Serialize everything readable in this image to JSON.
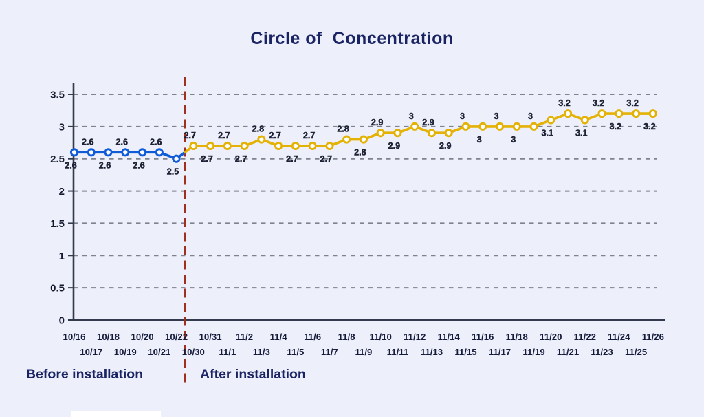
{
  "title": "Circle of  Concentration",
  "annotations": {
    "before": "Before installation",
    "after": "After installation"
  },
  "colors": {
    "background": "#EDF0FA",
    "title_text": "#1A2464",
    "before_series": "#0F5BD8",
    "after_series": "#E3B204",
    "divider": "#9F2F1F",
    "grid": "#7F838D",
    "axis": "#333A4D",
    "data_label": "#1E2235",
    "date_label": "#151B3B",
    "y_label": "#15192E",
    "white_box": "#FFFFFF"
  },
  "chart_data": {
    "type": "line",
    "title": "Circle of  Concentration",
    "xlabel": "",
    "ylabel": "",
    "ylim": [
      0,
      3.5
    ],
    "y_ticks": [
      0,
      0.5,
      1,
      1.5,
      2,
      2.5,
      3,
      3.5
    ],
    "grid": true,
    "legend_position": "bottom",
    "divider": {
      "style": "red-dashed-vertical",
      "between": [
        "10/22",
        "10/30"
      ]
    },
    "categories": [
      "10/16",
      "10/17",
      "10/18",
      "10/19",
      "10/20",
      "10/21",
      "10/22",
      "10/30",
      "10/31",
      "11/1",
      "11/2",
      "11/3",
      "11/4",
      "11/5",
      "11/6",
      "11/7",
      "11/8",
      "11/9",
      "11/10",
      "11/11",
      "11/12",
      "11/13",
      "11/14",
      "11/15",
      "11/16",
      "11/17",
      "11/18",
      "11/19",
      "11/20",
      "11/21",
      "11/22",
      "11/23",
      "11/24",
      "11/25",
      "11/26"
    ],
    "series": [
      {
        "name": "Before installation",
        "color_key": "before_series",
        "start_index": 0,
        "values": [
          2.6,
          2.6,
          2.6,
          2.6,
          2.6,
          2.6,
          2.5
        ],
        "label_sides": [
          "below",
          "above",
          "below",
          "above",
          "below",
          "above",
          "below"
        ]
      },
      {
        "name": "After installation",
        "color_key": "after_series",
        "start_index": 7,
        "values": [
          2.7,
          2.7,
          2.7,
          2.7,
          2.8,
          2.7,
          2.7,
          2.7,
          2.7,
          2.8,
          2.8,
          2.9,
          2.9,
          3,
          2.9,
          2.9,
          3,
          3,
          3,
          3,
          3,
          3.1,
          3.2,
          3.1,
          3.2,
          3.2,
          3.2,
          3.2
        ],
        "label_sides": [
          "above",
          "below",
          "above",
          "below",
          "above",
          "above",
          "below",
          "above",
          "below",
          "above",
          "below",
          "above",
          "below",
          "above",
          "above",
          "below",
          "above",
          "below",
          "above",
          "below",
          "above",
          "below",
          "above",
          "below",
          "above",
          "below",
          "above",
          "below"
        ]
      }
    ]
  }
}
